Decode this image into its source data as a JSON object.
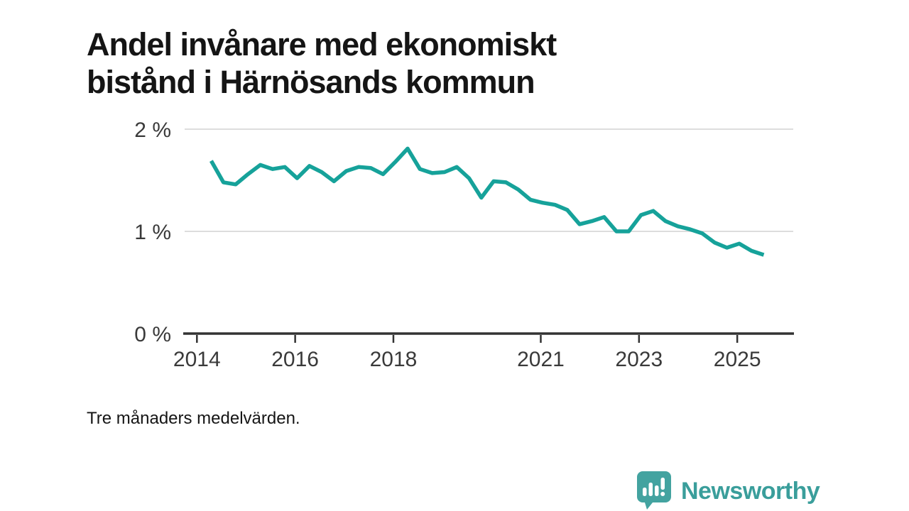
{
  "header": {
    "title": "Andel invånare med ekonomiskt\nbistånd i Härnösands kommun"
  },
  "chart_data": {
    "type": "line",
    "title": "Andel invånare med ekonomiskt bistånd i Härnösands kommun",
    "unit": "%",
    "x_start_year": 2014.29,
    "x_step_years": 0.25,
    "labels": [
      "2014-Q2",
      "2014-Q3",
      "2014-Q4",
      "2015-Q1",
      "2015-Q2",
      "2015-Q3",
      "2015-Q4",
      "2016-Q1",
      "2016-Q2",
      "2016-Q3",
      "2016-Q4",
      "2017-Q1",
      "2017-Q2",
      "2017-Q3",
      "2017-Q4",
      "2018-Q1",
      "2018-Q2",
      "2018-Q3",
      "2018-Q4",
      "2019-Q1",
      "2019-Q2",
      "2019-Q3",
      "2019-Q4",
      "2020-Q1",
      "2020-Q2",
      "2020-Q3",
      "2020-Q4",
      "2021-Q1",
      "2021-Q2",
      "2021-Q3",
      "2021-Q4",
      "2022-Q1",
      "2022-Q2",
      "2022-Q3",
      "2022-Q4",
      "2023-Q1",
      "2023-Q2",
      "2023-Q3",
      "2023-Q4",
      "2024-Q1",
      "2024-Q2",
      "2024-Q3",
      "2024-Q4",
      "2025-Q1",
      "2025-Q2",
      "2025-Q3"
    ],
    "values": [
      1.69,
      1.48,
      1.46,
      1.56,
      1.65,
      1.61,
      1.63,
      1.52,
      1.64,
      1.58,
      1.49,
      1.59,
      1.63,
      1.62,
      1.56,
      1.68,
      1.81,
      1.61,
      1.57,
      1.58,
      1.63,
      1.52,
      1.33,
      1.49,
      1.48,
      1.41,
      1.31,
      1.28,
      1.26,
      1.21,
      1.07,
      1.1,
      1.14,
      1.0,
      1.0,
      1.16,
      1.2,
      1.1,
      1.05,
      1.02,
      0.98,
      0.89,
      0.84,
      0.88,
      0.81,
      0.77
    ],
    "x_ticks": [
      2014,
      2016,
      2018,
      2021,
      2023,
      2025
    ],
    "y_ticks": [
      {
        "value": 0,
        "label": "0 %"
      },
      {
        "value": 1,
        "label": "1 %"
      },
      {
        "value": 2,
        "label": "2 %"
      }
    ],
    "ylim": [
      0,
      2.1
    ],
    "xlim": [
      2013.75,
      2026.14
    ],
    "grid": "horizontal",
    "legend": "none",
    "line_color": "#16a29a"
  },
  "footer": {
    "note": "Tre månaders medelvärden."
  },
  "logo": {
    "text": "Newsworthy",
    "icon": "bar-chart-speech-bubble-icon",
    "icon_color": "#43a3a0",
    "text_color": "#3a9e9b"
  },
  "colors": {
    "background": "#ffffff",
    "title_text": "#151515",
    "axis_line": "#333333",
    "axis_text": "#3a3a3a",
    "gridline": "#dddddd",
    "accent": "#16a29a"
  }
}
